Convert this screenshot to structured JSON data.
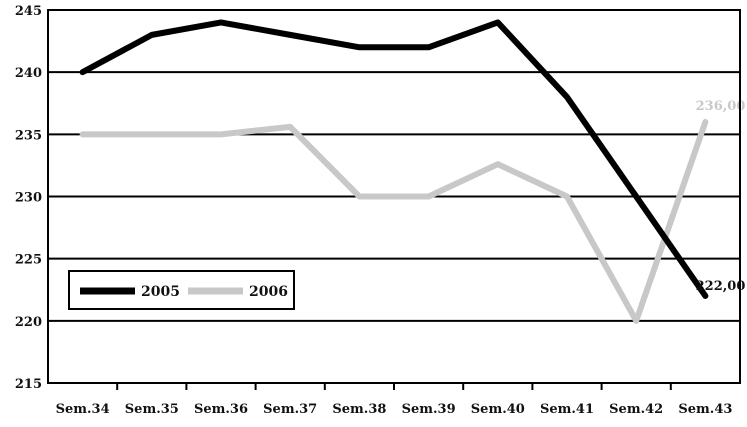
{
  "chart_data": {
    "type": "line",
    "categories": [
      "Sem.34",
      "Sem.35",
      "Sem.36",
      "Sem.37",
      "Sem.38",
      "Sem.39",
      "Sem.40",
      "Sem.41",
      "Sem.42",
      "Sem.43"
    ],
    "series": [
      {
        "name": "2005",
        "values": [
          240,
          243,
          244,
          243,
          242,
          242,
          244,
          238,
          230,
          222
        ],
        "color": "#000000"
      },
      {
        "name": "2006",
        "values": [
          235,
          235,
          235,
          235.6,
          230,
          230,
          232.6,
          230,
          220,
          236
        ],
        "color": "#c8c8c8"
      }
    ],
    "yticks": [
      "215",
      "220",
      "225",
      "230",
      "235",
      "240",
      "245"
    ],
    "ylim": [
      215,
      245
    ],
    "grid": true,
    "legend_position": "bottom-left",
    "annotations": [
      {
        "series": "2005",
        "text": "222,00",
        "color": "#111111"
      },
      {
        "series": "2006",
        "text": "236,00",
        "color": "#c8c8c8"
      }
    ]
  }
}
